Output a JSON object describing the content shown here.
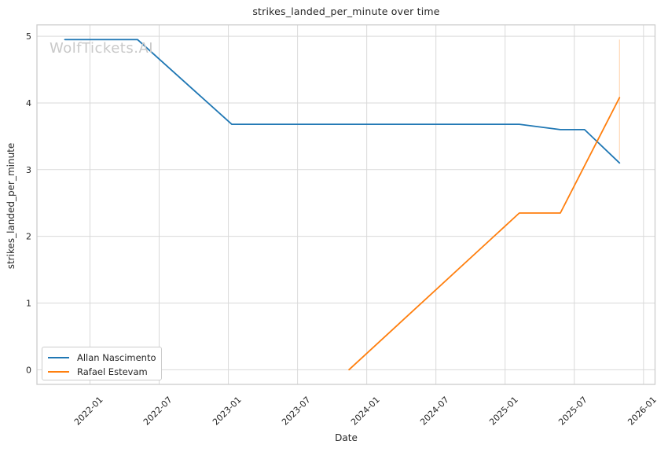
{
  "figure": {
    "title": "strikes_landed_per_minute over time",
    "watermark": "WolfTickets.AI",
    "xlabel": "Date",
    "ylabel": "strikes_landed_per_minute"
  },
  "colors": {
    "background": "#ffffff",
    "grid": "#d9d9d9",
    "spine": "#cccccc",
    "text": "#262626",
    "watermark": "#c9c9c9",
    "series_blue": "#1f77b4",
    "series_orange": "#ff7f0e"
  },
  "chart_data": {
    "type": "line",
    "title": "strikes_landed_per_minute over time",
    "xlabel": "Date",
    "ylabel": "strikes_landed_per_minute",
    "grid": true,
    "legend_position": "lower left",
    "x_tick_labels": [
      "2022-01",
      "2022-07",
      "2023-01",
      "2023-07",
      "2024-01",
      "2024-07",
      "2025-01",
      "2025-07",
      "2026-01"
    ],
    "y_tick_labels": [
      0,
      1,
      2,
      3,
      4,
      5
    ],
    "ylim": [
      -0.22,
      5.17
    ],
    "xlim_months_from_2022_01": [
      -4.6,
      49.0
    ],
    "series": [
      {
        "name": "Allan Nascimento",
        "color": "#1f77b4",
        "points": [
          {
            "date": "2021-10-26",
            "value": 4.95
          },
          {
            "date": "2022-05-05",
            "value": 4.95
          },
          {
            "date": "2023-01-10",
            "value": 3.68
          },
          {
            "date": "2025-02-08",
            "value": 3.68
          },
          {
            "date": "2025-05-25",
            "value": 3.6
          },
          {
            "date": "2025-07-28",
            "value": 3.6
          },
          {
            "date": "2025-10-29",
            "value": 3.1
          }
        ]
      },
      {
        "name": "Rafael Estevam",
        "color": "#ff7f0e",
        "points": [
          {
            "date": "2023-11-15",
            "value": 0.0
          },
          {
            "date": "2025-02-08",
            "value": 2.35
          },
          {
            "date": "2025-05-25",
            "value": 2.35
          },
          {
            "date": "2025-10-29",
            "value": 4.08
          }
        ],
        "error_bar": {
          "date": "2025-10-29",
          "low": 3.15,
          "high": 4.95,
          "opacity": 0.3
        }
      }
    ]
  }
}
